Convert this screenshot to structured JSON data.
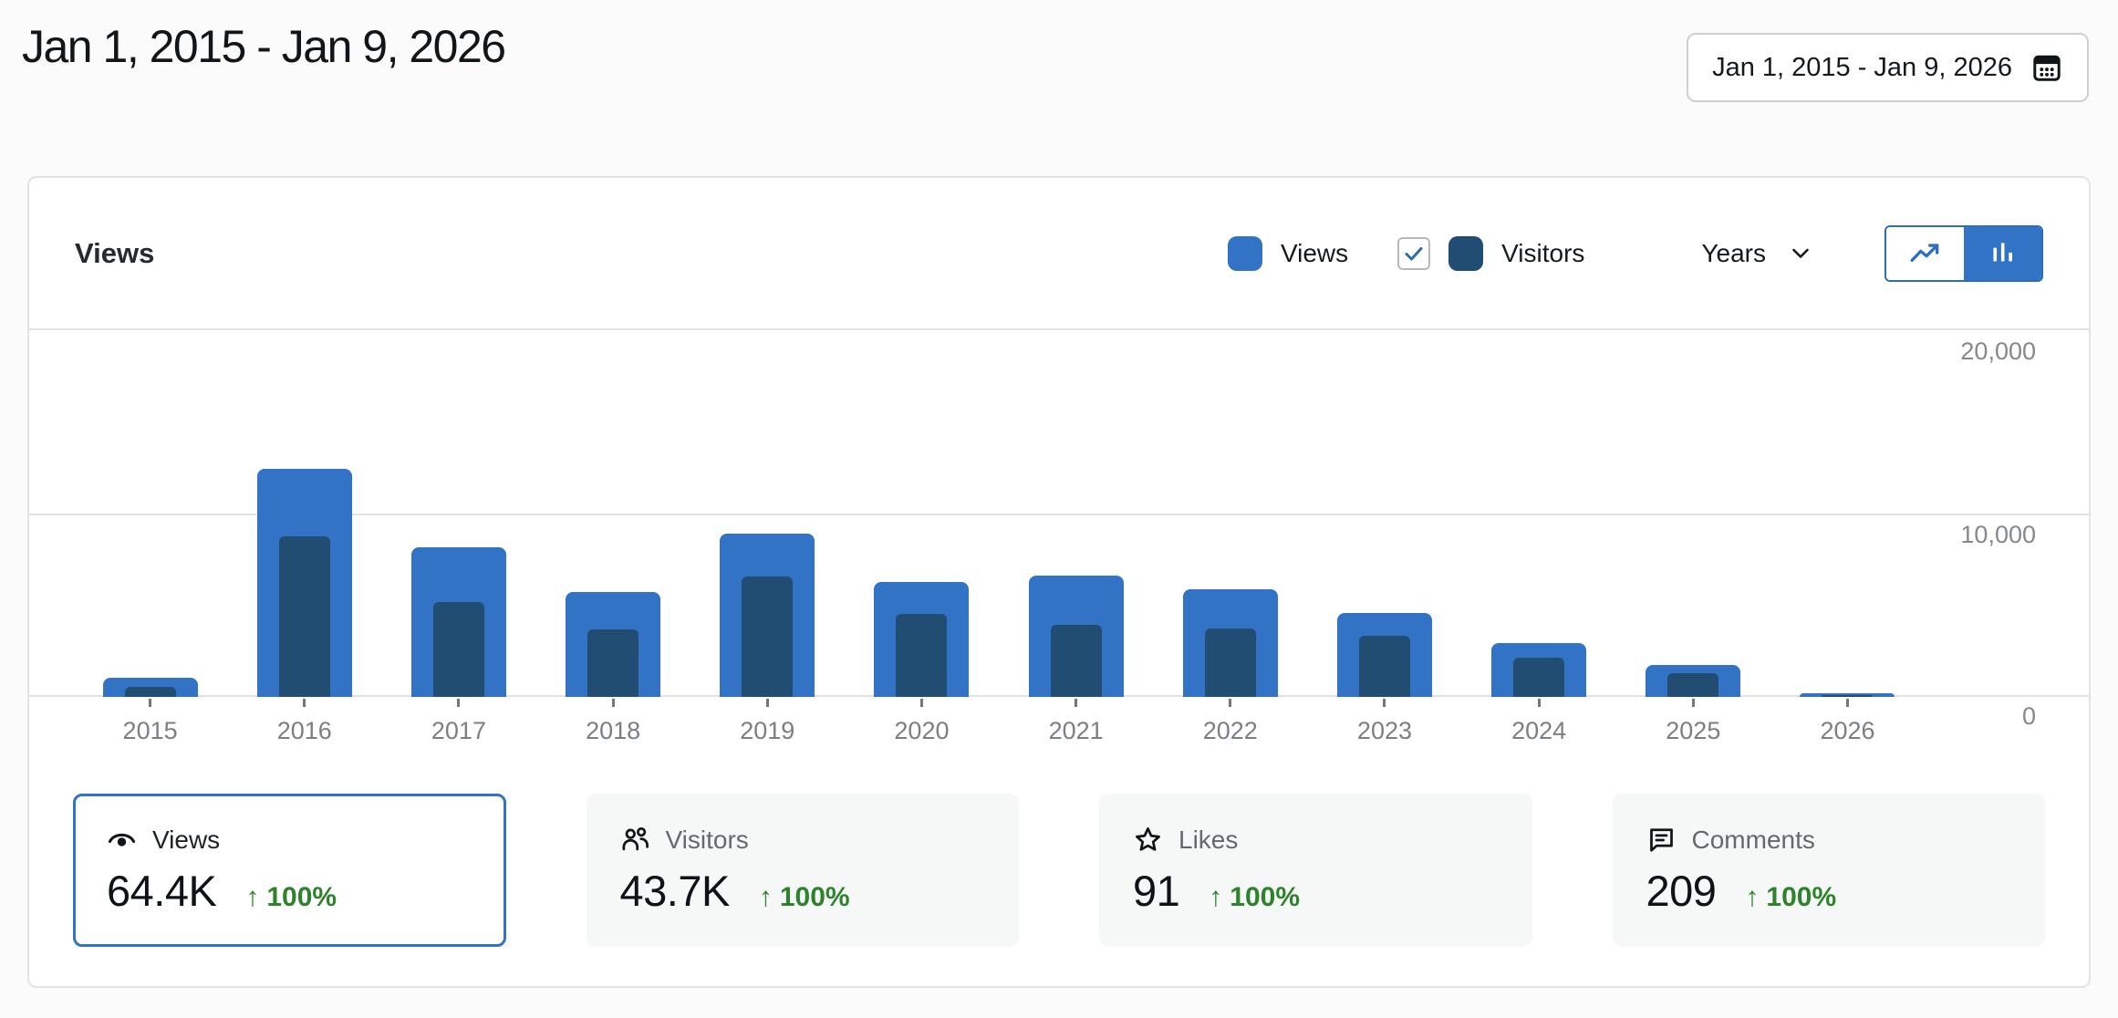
{
  "page": {
    "title": "Jan 1, 2015 - Jan 9, 2026"
  },
  "date_picker": {
    "label": "Jan 1, 2015 - Jan 9, 2026",
    "icon": "calendar-icon"
  },
  "chart_card": {
    "title": "Views",
    "legend": {
      "views_label": "Views",
      "views_color": "#3273c6",
      "visitors_label": "Visitors",
      "visitors_color": "#214d72",
      "visitors_checked": true
    },
    "interval": {
      "label": "Years"
    },
    "chart_type_toggle": {
      "options": [
        "line-chart",
        "bar-chart"
      ],
      "active": "bar-chart"
    }
  },
  "chart_data": {
    "type": "bar",
    "title": "Views",
    "categories": [
      "2015",
      "2016",
      "2017",
      "2018",
      "2019",
      "2020",
      "2021",
      "2022",
      "2023",
      "2024",
      "2025",
      "2026"
    ],
    "series": [
      {
        "name": "Views",
        "color": "#3273c6",
        "values": [
          1040,
          12430,
          8140,
          5710,
          8930,
          6250,
          6600,
          5860,
          4570,
          2930,
          1740,
          200
        ]
      },
      {
        "name": "Visitors",
        "color": "#214d72",
        "values": [
          550,
          8780,
          5160,
          3670,
          6550,
          4520,
          3920,
          3720,
          3330,
          2130,
          1290,
          100
        ]
      }
    ],
    "ylim": [
      0,
      20000
    ],
    "ytick_labels": [
      "20,000",
      "10,000",
      "0"
    ],
    "grid": "horizontal",
    "legend_position": "top-right",
    "xlabel": "",
    "ylabel": ""
  },
  "summary_cards": [
    {
      "id": "views",
      "icon": "eye-icon",
      "label": "Views",
      "value": "64.4K",
      "trend_arrow": "↑",
      "trend_value": "100%",
      "active": true
    },
    {
      "id": "visitors",
      "icon": "people-icon",
      "label": "Visitors",
      "value": "43.7K",
      "trend_arrow": "↑",
      "trend_value": "100%",
      "active": false
    },
    {
      "id": "likes",
      "icon": "star-icon",
      "label": "Likes",
      "value": "91",
      "trend_arrow": "↑",
      "trend_value": "100%",
      "active": false
    },
    {
      "id": "comments",
      "icon": "comment-icon",
      "label": "Comments",
      "value": "209",
      "trend_arrow": "↑",
      "trend_value": "100%",
      "active": false
    }
  ],
  "colors": {
    "accent_blue": "#3273c6",
    "navy": "#214d72",
    "trend_green": "#2e822b",
    "grid_line": "#e0e1e3",
    "axis_text": "#85888c"
  }
}
